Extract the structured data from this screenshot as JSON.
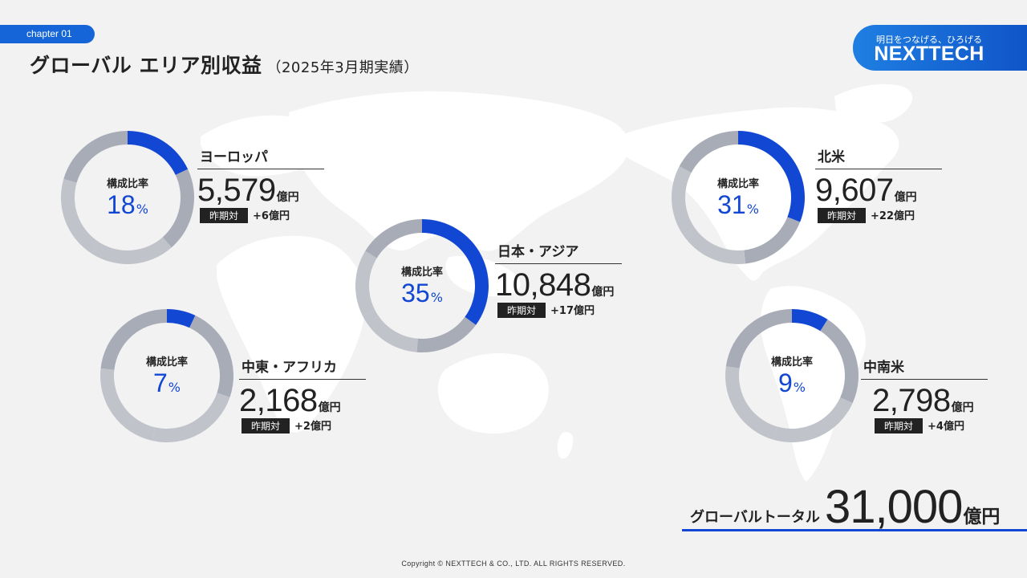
{
  "chapter": "chapter 01",
  "title": "グローバル エリア別収益",
  "title_sub": "（2025年3月期実績）",
  "brand": {
    "tagline": "明日をつなげる、ひろげる",
    "name": "NEXTTECH"
  },
  "ratio_label": "構成比率",
  "yoy_label": "昨期対",
  "colors": {
    "highlight": "#1247d4",
    "ring_light": "#c0c3ca",
    "ring_dark": "#a8acb6",
    "accent": "#1565d8"
  },
  "chart_data": {
    "type": "pie",
    "unit": "億円",
    "series": [
      {
        "name": "ヨーロッパ",
        "value": 5579,
        "share": 18,
        "yoy": "+6億円"
      },
      {
        "name": "中東・アフリカ",
        "value": 2168,
        "share": 7,
        "yoy": "+2億円"
      },
      {
        "name": "日本・アジア",
        "value": 10848,
        "share": 35,
        "yoy": "+17億円"
      },
      {
        "name": "北米",
        "value": 9607,
        "share": 31,
        "yoy": "+22億円"
      },
      {
        "name": "中南米",
        "value": 2798,
        "share": 9,
        "yoy": "+4億円"
      }
    ]
  },
  "regions": [
    {
      "name": "ヨーロッパ",
      "amount": "5,579",
      "unit": "億円",
      "share": "18",
      "share_unit": "%",
      "yoy": "+6億円"
    },
    {
      "name": "中東・アフリカ",
      "amount": "2,168",
      "unit": "億円",
      "share": "7",
      "share_unit": "%",
      "yoy": "+2億円"
    },
    {
      "name": "日本・アジア",
      "amount": "10,848",
      "unit": "億円",
      "share": "35",
      "share_unit": "%",
      "yoy": "+17億円"
    },
    {
      "name": "北米",
      "amount": "9,607",
      "unit": "億円",
      "share": "31",
      "share_unit": "%",
      "yoy": "+22億円"
    },
    {
      "name": "中南米",
      "amount": "2,798",
      "unit": "億円",
      "share": "9",
      "share_unit": "%",
      "yoy": "+4億円"
    }
  ],
  "total": {
    "label": "グローバルトータル",
    "value": "31,000",
    "unit": "億円"
  },
  "copyright": "Copyright © NEXTTECH & CO., LTD. ALL RIGHTS RESERVED."
}
